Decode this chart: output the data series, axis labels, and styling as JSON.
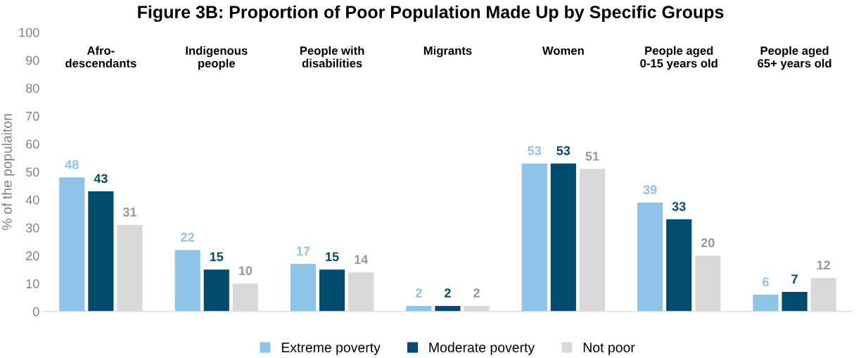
{
  "chart_data": {
    "type": "bar",
    "title": "Figure 3B: Proportion of Poor Population Made Up by Specific Groups",
    "ylabel": "% of the populaiton",
    "categories": [
      "Afro-\ndescendants",
      "Indigenous\npeople",
      "People with\ndisabilities",
      "Migrants",
      "Women",
      "People aged\n0-15 years old",
      "People aged\n65+ years old"
    ],
    "series": [
      {
        "name": "Extreme poverty",
        "color": "#8ec3ea",
        "values": [
          48,
          22,
          17,
          2,
          53,
          39,
          6
        ]
      },
      {
        "name": "Moderate poverty",
        "color": "#004b6e",
        "values": [
          43,
          15,
          15,
          2,
          53,
          33,
          7
        ]
      },
      {
        "name": "Not poor",
        "color": "#d9d9d9",
        "values": [
          31,
          10,
          14,
          2,
          51,
          20,
          12
        ]
      }
    ],
    "ylim": [
      0,
      100
    ],
    "yticks": [
      0,
      10,
      20,
      30,
      40,
      50,
      60,
      70,
      80,
      90,
      100
    ],
    "data_labels": true,
    "grid": false,
    "legend": "bottom"
  }
}
